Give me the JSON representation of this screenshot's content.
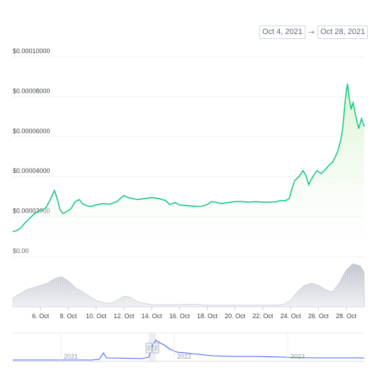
{
  "date_range": {
    "from": "Oct 4, 2021",
    "arrow": "→",
    "to": "Oct 28, 2021"
  },
  "colors": {
    "line": "#16c784",
    "fill_top": "#d6f3cf",
    "volume": "#c7cbd2",
    "navigator_line": "#3861fb",
    "grid": "#eff2f5"
  },
  "chart_data": {
    "type": "area",
    "title": "",
    "xlabel": "",
    "ylabel": "",
    "ylim": [
      0,
      0.0001
    ],
    "y_ticks": [
      "$0.00",
      "$0.00002000",
      "$0.00004000",
      "$0.00006000",
      "$0.00008000",
      "$0.00010000"
    ],
    "y_tick_values": [
      0,
      2e-05,
      4e-05,
      6e-05,
      8e-05,
      0.0001
    ],
    "x_ticks": [
      "6. Oct",
      "8. Oct",
      "10. Oct",
      "12. Oct",
      "14. Oct",
      "16. Oct",
      "18. Oct",
      "20. Oct",
      "22. Oct",
      "24. Oct",
      "26. Oct",
      "28. Oct"
    ],
    "x_tick_values": [
      6,
      8,
      10,
      12,
      14,
      16,
      18,
      20,
      22,
      24,
      26,
      28
    ],
    "grid": true,
    "series": [
      {
        "kind": "price",
        "x": [
          4.0,
          4.3,
          4.6,
          4.9,
          5.2,
          5.5,
          5.8,
          6.1,
          6.4,
          6.7,
          7.0,
          7.2,
          7.4,
          7.6,
          7.8,
          8.0,
          8.2,
          8.5,
          8.8,
          9.0,
          9.3,
          9.6,
          10.0,
          10.5,
          11.0,
          11.5,
          12.0,
          12.3,
          12.6,
          13.0,
          13.5,
          14.0,
          14.5,
          15.0,
          15.3,
          15.7,
          16.0,
          16.5,
          17.0,
          17.5,
          18.0,
          18.3,
          18.7,
          19.0,
          19.5,
          20.0,
          20.5,
          21.0,
          21.5,
          22.0,
          22.5,
          23.0,
          23.3,
          23.6,
          23.9,
          24.1,
          24.3,
          24.6,
          24.9,
          25.1,
          25.3,
          25.6,
          25.9,
          26.2,
          26.5,
          26.8,
          27.0,
          27.2,
          27.4,
          27.6,
          27.75,
          27.9,
          28.0,
          28.1,
          28.2,
          28.35,
          28.5,
          28.7,
          28.9,
          29.1,
          29.3
        ],
        "y": [
          1.25e-05,
          1.3e-05,
          1.45e-05,
          1.7e-05,
          1.9e-05,
          2.1e-05,
          2.25e-05,
          2.32e-05,
          2.45e-05,
          2.85e-05,
          3.3e-05,
          2.9e-05,
          2.35e-05,
          2.15e-05,
          2.22e-05,
          2.3e-05,
          2.4e-05,
          2.75e-05,
          2.85e-05,
          2.65e-05,
          2.55e-05,
          2.5e-05,
          2.58e-05,
          2.65e-05,
          2.62e-05,
          2.75e-05,
          3.05e-05,
          2.95e-05,
          2.9e-05,
          2.85e-05,
          2.9e-05,
          2.95e-05,
          2.9e-05,
          2.8e-05,
          2.6e-05,
          2.7e-05,
          2.58e-05,
          2.55e-05,
          2.52e-05,
          2.5e-05,
          2.6e-05,
          2.75e-05,
          2.7e-05,
          2.65e-05,
          2.7e-05,
          2.75e-05,
          2.75e-05,
          2.72e-05,
          2.75e-05,
          2.72e-05,
          2.72e-05,
          2.75e-05,
          2.8e-05,
          2.78e-05,
          2.9e-05,
          3.4e-05,
          3.8e-05,
          4e-05,
          4.3e-05,
          4.05e-05,
          3.6e-05,
          4e-05,
          4.3e-05,
          4.15e-05,
          4.35e-05,
          4.6e-05,
          4.7e-05,
          4.95e-05,
          5.3e-05,
          5.8e-05,
          6.4e-05,
          7.6e-05,
          8.25e-05,
          8.65e-05,
          8e-05,
          7.4e-05,
          7.7e-05,
          7e-05,
          6.4e-05,
          6.9e-05,
          6.5e-05
        ]
      },
      {
        "kind": "volume",
        "x": [
          4.0,
          4.5,
          5.0,
          5.5,
          6.0,
          6.5,
          7.0,
          7.5,
          8.0,
          8.5,
          9.0,
          9.5,
          10.0,
          10.5,
          11.0,
          11.5,
          12.0,
          12.5,
          13.0,
          13.5,
          14.0,
          14.5,
          15.0,
          15.5,
          16.0,
          16.5,
          17.0,
          17.5,
          18.0,
          18.5,
          19.0,
          19.5,
          20.0,
          20.5,
          21.0,
          21.5,
          22.0,
          22.5,
          23.0,
          23.5,
          24.0,
          24.5,
          25.0,
          25.5,
          26.0,
          26.5,
          27.0,
          27.5,
          28.0,
          28.5,
          29.0,
          29.3
        ],
        "y": [
          0.2,
          0.3,
          0.4,
          0.45,
          0.5,
          0.55,
          0.65,
          0.7,
          0.6,
          0.45,
          0.35,
          0.25,
          0.15,
          0.1,
          0.08,
          0.15,
          0.25,
          0.22,
          0.12,
          0.08,
          0.05,
          0.05,
          0.05,
          0.05,
          0.05,
          0.06,
          0.06,
          0.05,
          0.04,
          0.04,
          0.04,
          0.04,
          0.04,
          0.04,
          0.04,
          0.04,
          0.04,
          0.04,
          0.04,
          0.06,
          0.15,
          0.35,
          0.5,
          0.55,
          0.5,
          0.4,
          0.35,
          0.55,
          0.85,
          1.0,
          0.95,
          0.8
        ]
      }
    ]
  },
  "navigator": {
    "labels": [
      "2021",
      "2022",
      "2023"
    ]
  }
}
